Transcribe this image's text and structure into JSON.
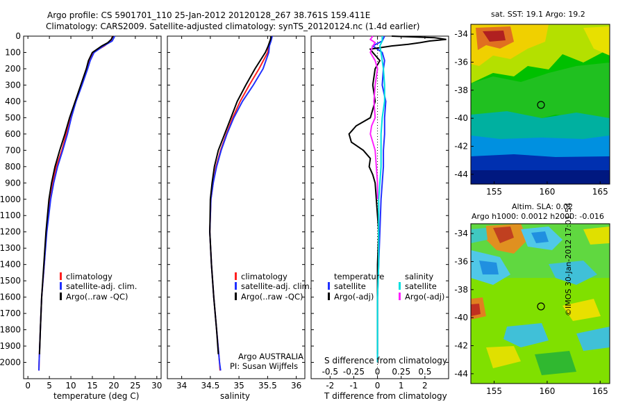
{
  "header": {
    "line1": "Argo profile: CS 5901701_110 25-Jan-2012 20120128_267 38.761S 159.411E",
    "line2": "Climatology: CARS2009. Satellite-adjusted climatology: synTS_20120124.nc (1.4d earlier)"
  },
  "colors": {
    "climatology": "#ff2020",
    "satellite": "#2030ff",
    "argo": "#000000",
    "sal_sat": "#00e0e0",
    "sal_argo": "#ff20ff"
  },
  "chart_data": [
    {
      "type": "line",
      "id": "temperature",
      "xlabel": "temperature (deg C)",
      "ylabel": "",
      "xlim": [
        -1,
        31
      ],
      "ylim": [
        2100,
        0
      ],
      "xticks": [
        "0",
        "5",
        "10",
        "15",
        "20",
        "25",
        "30"
      ],
      "xtick_values": [
        0,
        5,
        10,
        15,
        20,
        25,
        30
      ],
      "yticks": [
        "0",
        "100",
        "200",
        "300",
        "400",
        "500",
        "600",
        "700",
        "800",
        "900",
        "1000",
        "1100",
        "1200",
        "1300",
        "1400",
        "1500",
        "1600",
        "1700",
        "1800",
        "1900",
        "2000"
      ],
      "ytick_values": [
        0,
        100,
        200,
        300,
        400,
        500,
        600,
        700,
        800,
        900,
        1000,
        1100,
        1200,
        1300,
        1400,
        1500,
        1600,
        1700,
        1800,
        1900,
        2000
      ],
      "legend": [
        "climatology",
        "satellite-adj. clim.",
        "Argo(..raw -QC)"
      ],
      "series": [
        {
          "name": "climatology",
          "color": "climatology",
          "depth": [
            0,
            30,
            60,
            100,
            150,
            200,
            300,
            400,
            500,
            600,
            700,
            800,
            900,
            1000,
            1200,
            1400,
            1600,
            1800,
            2000,
            2050
          ],
          "values": [
            19.7,
            19.3,
            17.8,
            15.2,
            14.3,
            13.8,
            12.5,
            11.0,
            9.9,
            8.9,
            7.9,
            6.6,
            5.8,
            5.2,
            4.3,
            3.8,
            3.2,
            2.9,
            2.6,
            2.55
          ]
        },
        {
          "name": "satellite-adj. clim.",
          "color": "satellite",
          "depth": [
            0,
            30,
            60,
            100,
            150,
            200,
            300,
            400,
            500,
            600,
            700,
            800,
            900,
            1000,
            1200,
            1400,
            1600,
            1800,
            2000,
            2050
          ],
          "values": [
            20.2,
            19.6,
            17.6,
            15.4,
            14.5,
            13.9,
            12.6,
            11.2,
            10.1,
            9.2,
            8.1,
            6.9,
            6.0,
            5.3,
            4.4,
            3.8,
            3.2,
            2.9,
            2.6,
            2.55
          ]
        },
        {
          "name": "Argo",
          "color": "argo",
          "depth": [
            0,
            20,
            40,
            60,
            100,
            150,
            200,
            300,
            400,
            500,
            600,
            700,
            800,
            900,
            1000,
            1200,
            1400,
            1600,
            1800,
            1950
          ],
          "values": [
            19.8,
            19.4,
            18.6,
            17.2,
            15.0,
            14.1,
            13.6,
            12.3,
            11.0,
            9.7,
            8.6,
            7.4,
            6.3,
            5.5,
            4.9,
            4.2,
            3.7,
            3.2,
            2.9,
            2.7
          ]
        }
      ]
    },
    {
      "type": "line",
      "id": "salinity",
      "xlabel": "salinity",
      "xlim": [
        33.75,
        36.15
      ],
      "ylim": [
        2100,
        0
      ],
      "xticks": [
        "34",
        "34.5",
        "35",
        "35.5",
        "36"
      ],
      "xtick_values": [
        34,
        34.5,
        35,
        35.5,
        36
      ],
      "legend": [
        "climatology",
        "satellite-adj. clim.",
        "Argo(..raw -QC)"
      ],
      "annotation": [
        "Argo AUSTRALIA",
        "PI: Susan Wijffels"
      ],
      "series": [
        {
          "name": "climatology",
          "color": "climatology",
          "depth": [
            0,
            30,
            60,
            100,
            200,
            300,
            400,
            500,
            600,
            700,
            800,
            900,
            1000,
            1200,
            1400,
            1600,
            1800,
            2000,
            2050
          ],
          "values": [
            35.57,
            35.55,
            35.52,
            35.5,
            35.35,
            35.18,
            35.02,
            34.89,
            34.78,
            34.68,
            34.6,
            34.55,
            34.51,
            34.49,
            34.52,
            34.56,
            34.61,
            34.66,
            34.67
          ]
        },
        {
          "name": "satellite-adj. clim.",
          "color": "satellite",
          "depth": [
            0,
            30,
            60,
            100,
            200,
            300,
            400,
            500,
            600,
            700,
            800,
            900,
            1000,
            1200,
            1400,
            1600,
            1800,
            2000,
            2050
          ],
          "values": [
            35.58,
            35.56,
            35.53,
            35.52,
            35.42,
            35.25,
            35.06,
            34.91,
            34.79,
            34.69,
            34.61,
            34.55,
            34.51,
            34.49,
            34.52,
            34.56,
            34.61,
            34.66,
            34.68
          ]
        },
        {
          "name": "Argo",
          "color": "argo",
          "depth": [
            0,
            20,
            60,
            100,
            200,
            300,
            400,
            500,
            600,
            700,
            800,
            900,
            1000,
            1200,
            1400,
            1600,
            1800,
            1950
          ],
          "values": [
            35.56,
            35.55,
            35.51,
            35.46,
            35.28,
            35.12,
            34.97,
            34.86,
            34.75,
            34.64,
            34.57,
            34.53,
            34.5,
            34.49,
            34.52,
            34.56,
            34.61,
            34.64
          ]
        }
      ]
    },
    {
      "type": "line",
      "id": "differences",
      "xlabel": "T difference from climatology",
      "xlabel_top": "S difference from climatology",
      "xlim": [
        -2.8,
        3
      ],
      "ylim": [
        2100,
        0
      ],
      "xticks": [
        "-2",
        "-1",
        "0",
        "1",
        "2"
      ],
      "xtick_values": [
        -2,
        -1,
        0,
        1,
        2
      ],
      "sticks": [
        "-0.5",
        "-0.25",
        "0",
        "0.25",
        "0.5"
      ],
      "stick_values": [
        -2,
        -1,
        0,
        1,
        2
      ],
      "legend_temperature": [
        "temperature",
        "satellite",
        "Argo(-adj)"
      ],
      "legend_salinity": [
        "salinity",
        "satellite",
        "Argo(-adj)"
      ],
      "series": [
        {
          "name": "T satellite",
          "color": "satellite",
          "depth": [
            0,
            30,
            60,
            100,
            150,
            200,
            300,
            400,
            500,
            600,
            700,
            800,
            900,
            1000,
            1200,
            1400,
            1600,
            1800,
            2000
          ],
          "values": [
            0.3,
            0.2,
            -0.2,
            0.2,
            0.3,
            0.25,
            0.2,
            0.35,
            0.3,
            0.3,
            0.25,
            0.25,
            0.2,
            0.15,
            0.1,
            0.05,
            0.0,
            0.0,
            0.0
          ]
        },
        {
          "name": "T Argo",
          "color": "argo",
          "depth": [
            0,
            10,
            20,
            30,
            40,
            50,
            60,
            80,
            100,
            150,
            200,
            300,
            400,
            500,
            550,
            600,
            650,
            700,
            750,
            800,
            850,
            900,
            1000,
            1100,
            1200,
            1400,
            1600,
            1800,
            1950
          ],
          "values": [
            0.6,
            2.4,
            2.9,
            2.2,
            1.8,
            1.3,
            0.6,
            -0.3,
            -0.2,
            0.1,
            -0.1,
            -0.2,
            -0.1,
            -0.3,
            -0.9,
            -1.2,
            -1.1,
            -0.6,
            -0.3,
            -0.35,
            -0.2,
            -0.1,
            -0.05,
            0.0,
            0.05,
            0.0,
            0.0,
            0.0,
            0.0
          ]
        },
        {
          "name": "S satellite",
          "color": "sal_sat",
          "depth": [
            0,
            30,
            60,
            100,
            200,
            300,
            400,
            500,
            600,
            700,
            800,
            900,
            1000,
            1200,
            1400,
            1600,
            1800,
            2000
          ],
          "values": [
            0.2,
            0.2,
            0.1,
            0.15,
            0.25,
            0.3,
            0.3,
            0.2,
            0.15,
            0.15,
            0.15,
            0.1,
            0.05,
            0.05,
            0.05,
            0.0,
            0.0,
            0.0
          ]
        },
        {
          "name": "S Argo",
          "color": "sal_argo",
          "depth": [
            0,
            20,
            40,
            60,
            100,
            150,
            200,
            300,
            400,
            500,
            550,
            600,
            650,
            700,
            800,
            900,
            1000
          ],
          "values": [
            -0.2,
            -0.3,
            -0.1,
            -0.2,
            -0.3,
            -0.1,
            0.0,
            -0.1,
            -0.15,
            -0.1,
            -0.25,
            -0.3,
            -0.2,
            -0.1,
            -0.05,
            0.0,
            0.0
          ]
        }
      ]
    }
  ],
  "maps": {
    "sst": {
      "title": "sat. SST: 19.1  Argo: 19.2",
      "lat_ticks": [
        "-34",
        "-36",
        "-38",
        "-40",
        "-42",
        "-44"
      ],
      "lon_ticks": [
        "155",
        "160",
        "165"
      ]
    },
    "sla": {
      "title1": "Altim. SLA: 0.02",
      "title2": "Argo h1000: 0.0012  h2000: -0.016",
      "lat_ticks": [
        "-34",
        "-36",
        "-38",
        "-40",
        "-42",
        "-44"
      ],
      "lon_ticks": [
        "155",
        "160",
        "165"
      ]
    },
    "side_label": "©IMOS 30-Jan-2012 17:01:54"
  }
}
